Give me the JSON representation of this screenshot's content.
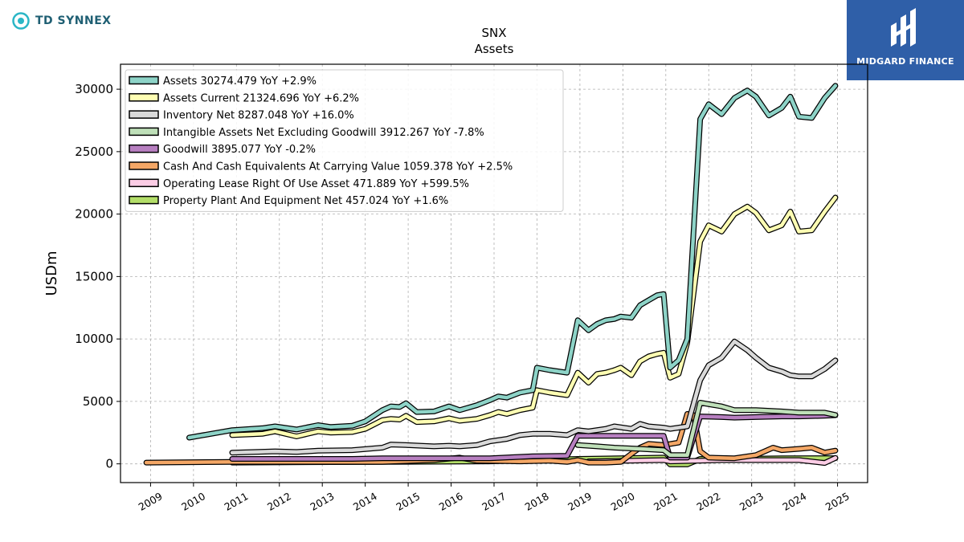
{
  "brand_left": "TD SYNNEX",
  "brand_right": "MIDGARD FINANCE",
  "chart_data": {
    "type": "line",
    "title": "SNX",
    "subtitle": "Assets",
    "ylabel": "USDm",
    "xlabel": "",
    "xlim": [
      2008.3,
      2025.7
    ],
    "ylim": [
      -1500,
      32000
    ],
    "yticks": [
      0,
      5000,
      10000,
      15000,
      20000,
      25000,
      30000
    ],
    "xticks": [
      "2009",
      "2010",
      "2011",
      "2012",
      "2013",
      "2014",
      "2015",
      "2016",
      "2017",
      "2018",
      "2019",
      "2020",
      "2021",
      "2022",
      "2023",
      "2024",
      "2025"
    ],
    "grid": true,
    "legend_position": "upper-left",
    "series": [
      {
        "name": "Assets  30274.479 YoY +2.9%",
        "color": "#8dd3c7",
        "points": [
          [
            2009.9,
            2100
          ],
          [
            2010.9,
            2700
          ],
          [
            2011.6,
            2850
          ],
          [
            2011.9,
            3000
          ],
          [
            2012.4,
            2750
          ],
          [
            2012.9,
            3100
          ],
          [
            2013.2,
            2950
          ],
          [
            2013.7,
            3050
          ],
          [
            2014.0,
            3400
          ],
          [
            2014.4,
            4300
          ],
          [
            2014.6,
            4600
          ],
          [
            2014.8,
            4550
          ],
          [
            2014.95,
            4850
          ],
          [
            2015.2,
            4150
          ],
          [
            2015.6,
            4200
          ],
          [
            2015.95,
            4600
          ],
          [
            2016.2,
            4300
          ],
          [
            2016.6,
            4700
          ],
          [
            2016.9,
            5100
          ],
          [
            2017.1,
            5400
          ],
          [
            2017.3,
            5300
          ],
          [
            2017.6,
            5700
          ],
          [
            2017.9,
            5900
          ],
          [
            2018.0,
            7700
          ],
          [
            2018.3,
            7500
          ],
          [
            2018.7,
            7300
          ],
          [
            2018.95,
            11500
          ],
          [
            2019.2,
            10700
          ],
          [
            2019.4,
            11200
          ],
          [
            2019.6,
            11500
          ],
          [
            2019.8,
            11600
          ],
          [
            2019.95,
            11800
          ],
          [
            2020.2,
            11700
          ],
          [
            2020.4,
            12700
          ],
          [
            2020.6,
            13100
          ],
          [
            2020.8,
            13500
          ],
          [
            2020.95,
            13600
          ],
          [
            2021.1,
            7700
          ],
          [
            2021.3,
            8300
          ],
          [
            2021.5,
            10000
          ],
          [
            2021.8,
            27600
          ],
          [
            2022.0,
            28800
          ],
          [
            2022.3,
            28000
          ],
          [
            2022.6,
            29300
          ],
          [
            2022.9,
            29900
          ],
          [
            2023.1,
            29400
          ],
          [
            2023.4,
            27900
          ],
          [
            2023.7,
            28500
          ],
          [
            2023.9,
            29400
          ],
          [
            2024.1,
            27800
          ],
          [
            2024.4,
            27700
          ],
          [
            2024.7,
            29300
          ],
          [
            2024.95,
            30274
          ]
        ]
      },
      {
        "name": "Assets Current  21324.696 YoY +6.2%",
        "color": "#ffffb3",
        "points": [
          [
            2010.9,
            2300
          ],
          [
            2011.6,
            2400
          ],
          [
            2011.9,
            2600
          ],
          [
            2012.4,
            2200
          ],
          [
            2012.9,
            2600
          ],
          [
            2013.2,
            2500
          ],
          [
            2013.7,
            2550
          ],
          [
            2014.0,
            2800
          ],
          [
            2014.4,
            3500
          ],
          [
            2014.6,
            3600
          ],
          [
            2014.8,
            3550
          ],
          [
            2014.95,
            3850
          ],
          [
            2015.2,
            3350
          ],
          [
            2015.6,
            3400
          ],
          [
            2015.95,
            3650
          ],
          [
            2016.2,
            3450
          ],
          [
            2016.6,
            3600
          ],
          [
            2016.9,
            3900
          ],
          [
            2017.1,
            4150
          ],
          [
            2017.3,
            4000
          ],
          [
            2017.6,
            4300
          ],
          [
            2017.9,
            4500
          ],
          [
            2018.0,
            5900
          ],
          [
            2018.3,
            5700
          ],
          [
            2018.7,
            5500
          ],
          [
            2018.95,
            7300
          ],
          [
            2019.2,
            6500
          ],
          [
            2019.4,
            7200
          ],
          [
            2019.6,
            7300
          ],
          [
            2019.8,
            7500
          ],
          [
            2019.95,
            7700
          ],
          [
            2020.2,
            7100
          ],
          [
            2020.4,
            8200
          ],
          [
            2020.6,
            8600
          ],
          [
            2020.8,
            8800
          ],
          [
            2020.95,
            8900
          ],
          [
            2021.1,
            6900
          ],
          [
            2021.3,
            7200
          ],
          [
            2021.5,
            9700
          ],
          [
            2021.8,
            17800
          ],
          [
            2022.0,
            19100
          ],
          [
            2022.3,
            18600
          ],
          [
            2022.6,
            20000
          ],
          [
            2022.9,
            20600
          ],
          [
            2023.1,
            20100
          ],
          [
            2023.4,
            18700
          ],
          [
            2023.7,
            19100
          ],
          [
            2023.9,
            20200
          ],
          [
            2024.1,
            18600
          ],
          [
            2024.4,
            18700
          ],
          [
            2024.7,
            20200
          ],
          [
            2024.95,
            21325
          ]
        ]
      },
      {
        "name": "Inventory Net  8287.048 YoY +16.0%",
        "color": "#d9d9d9",
        "points": [
          [
            2010.9,
            900
          ],
          [
            2011.9,
            1000
          ],
          [
            2012.4,
            950
          ],
          [
            2012.9,
            1050
          ],
          [
            2013.7,
            1100
          ],
          [
            2014.4,
            1300
          ],
          [
            2014.6,
            1550
          ],
          [
            2014.95,
            1500
          ],
          [
            2015.6,
            1400
          ],
          [
            2015.95,
            1450
          ],
          [
            2016.2,
            1400
          ],
          [
            2016.6,
            1500
          ],
          [
            2016.9,
            1800
          ],
          [
            2017.3,
            2000
          ],
          [
            2017.6,
            2300
          ],
          [
            2017.9,
            2400
          ],
          [
            2018.3,
            2400
          ],
          [
            2018.7,
            2300
          ],
          [
            2018.95,
            2700
          ],
          [
            2019.2,
            2600
          ],
          [
            2019.6,
            2800
          ],
          [
            2019.8,
            3000
          ],
          [
            2020.2,
            2800
          ],
          [
            2020.4,
            3200
          ],
          [
            2020.6,
            3000
          ],
          [
            2020.95,
            2900
          ],
          [
            2021.1,
            2800
          ],
          [
            2021.5,
            3000
          ],
          [
            2021.8,
            6700
          ],
          [
            2022.0,
            7900
          ],
          [
            2022.3,
            8500
          ],
          [
            2022.6,
            9800
          ],
          [
            2022.9,
            9100
          ],
          [
            2023.1,
            8500
          ],
          [
            2023.4,
            7700
          ],
          [
            2023.7,
            7400
          ],
          [
            2023.9,
            7100
          ],
          [
            2024.1,
            7000
          ],
          [
            2024.4,
            7000
          ],
          [
            2024.7,
            7600
          ],
          [
            2024.95,
            8287
          ]
        ]
      },
      {
        "name": "Intangible Assets Net Excluding Goodwill  3912.267 YoY -7.8%",
        "color": "#bfe0b9",
        "points": [
          [
            2018.95,
            1500
          ],
          [
            2019.4,
            1400
          ],
          [
            2019.8,
            1300
          ],
          [
            2020.4,
            1200
          ],
          [
            2020.95,
            1100
          ],
          [
            2021.1,
            700
          ],
          [
            2021.5,
            700
          ],
          [
            2021.8,
            4900
          ],
          [
            2022.3,
            4600
          ],
          [
            2022.6,
            4300
          ],
          [
            2023.1,
            4300
          ],
          [
            2023.7,
            4200
          ],
          [
            2024.1,
            4100
          ],
          [
            2024.7,
            4100
          ],
          [
            2024.95,
            3912
          ]
        ]
      },
      {
        "name": "Goodwill  3895.077 YoY -0.2%",
        "color": "#b77fc0",
        "points": [
          [
            2010.9,
            400
          ],
          [
            2013.7,
            400
          ],
          [
            2014.4,
            450
          ],
          [
            2016.9,
            450
          ],
          [
            2017.9,
            600
          ],
          [
            2018.7,
            650
          ],
          [
            2018.95,
            2250
          ],
          [
            2019.4,
            2250
          ],
          [
            2020.95,
            2250
          ],
          [
            2021.1,
            500
          ],
          [
            2021.5,
            500
          ],
          [
            2021.8,
            3800
          ],
          [
            2022.3,
            3750
          ],
          [
            2022.6,
            3700
          ],
          [
            2023.1,
            3750
          ],
          [
            2023.7,
            3800
          ],
          [
            2024.1,
            3800
          ],
          [
            2024.7,
            3850
          ],
          [
            2024.95,
            3895
          ]
        ]
      },
      {
        "name": "Cash And Cash Equivalents At Carrying Value  1059.378 YoY +2.5%",
        "color": "#f4a766",
        "points": [
          [
            2008.9,
            100
          ],
          [
            2010.9,
            150
          ],
          [
            2012.9,
            150
          ],
          [
            2014.4,
            150
          ],
          [
            2015.6,
            300
          ],
          [
            2016.2,
            500
          ],
          [
            2016.6,
            250
          ],
          [
            2017.6,
            200
          ],
          [
            2018.3,
            250
          ],
          [
            2018.7,
            150
          ],
          [
            2018.95,
            300
          ],
          [
            2019.2,
            100
          ],
          [
            2019.6,
            100
          ],
          [
            2019.95,
            150
          ],
          [
            2020.2,
            800
          ],
          [
            2020.4,
            1300
          ],
          [
            2020.6,
            1600
          ],
          [
            2020.95,
            1500
          ],
          [
            2021.3,
            1700
          ],
          [
            2021.5,
            4000
          ],
          [
            2021.65,
            3900
          ],
          [
            2021.8,
            1000
          ],
          [
            2022.0,
            500
          ],
          [
            2022.6,
            450
          ],
          [
            2023.1,
            700
          ],
          [
            2023.5,
            1300
          ],
          [
            2023.7,
            1100
          ],
          [
            2024.1,
            1200
          ],
          [
            2024.4,
            1300
          ],
          [
            2024.7,
            900
          ],
          [
            2024.95,
            1059
          ]
        ]
      },
      {
        "name": "Operating Lease Right Of Use Asset  471.889 YoY +599.5%",
        "color": "#fccde5",
        "points": [
          [
            2019.2,
            200
          ],
          [
            2020.95,
            300
          ],
          [
            2021.1,
            200
          ],
          [
            2021.8,
            250
          ],
          [
            2022.3,
            300
          ],
          [
            2023.1,
            300
          ],
          [
            2024.1,
            300
          ],
          [
            2024.7,
            68
          ],
          [
            2024.95,
            472
          ]
        ]
      },
      {
        "name": "Property Plant And Equipment Net  457.024 YoY +1.6%",
        "color": "#b3de69",
        "points": [
          [
            2010.9,
            100
          ],
          [
            2016.9,
            200
          ],
          [
            2018.95,
            400
          ],
          [
            2020.95,
            500
          ],
          [
            2021.1,
            -50
          ],
          [
            2021.5,
            -50
          ],
          [
            2021.8,
            400
          ],
          [
            2022.6,
            400
          ],
          [
            2023.7,
            450
          ],
          [
            2024.95,
            457
          ]
        ]
      }
    ]
  }
}
